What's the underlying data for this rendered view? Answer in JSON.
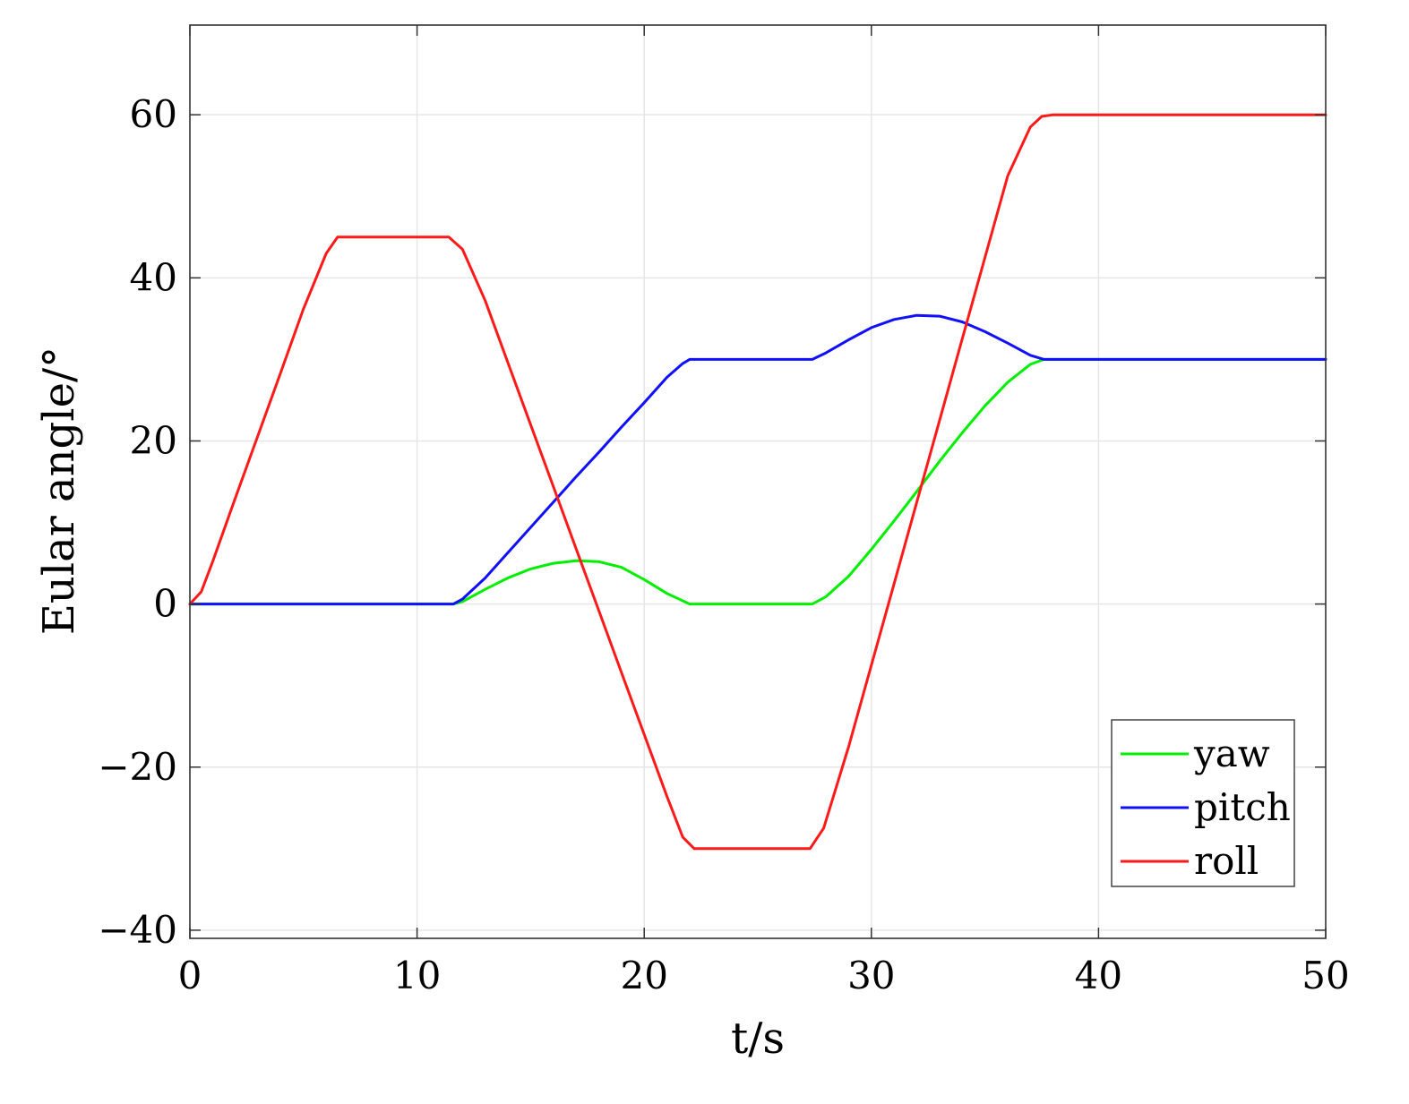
{
  "chart_data": {
    "type": "line",
    "title": "",
    "xlabel": "t/s",
    "ylabel": "Eular angle/°",
    "xlim": [
      0,
      50
    ],
    "ylim": [
      -41,
      71
    ],
    "xticks": [
      0,
      10,
      20,
      30,
      40,
      50
    ],
    "xtick_labels": [
      "0",
      "10",
      "20",
      "30",
      "40",
      "50"
    ],
    "yticks": [
      -40,
      -20,
      0,
      20,
      40,
      60
    ],
    "ytick_labels": [
      "−40",
      "−20",
      "0",
      "20",
      "40",
      "60"
    ],
    "grid": true,
    "legend_position": "bottom-right",
    "series": [
      {
        "name": "yaw",
        "color": "#00ee00",
        "x": [
          0,
          11.6,
          12,
          13,
          14,
          15,
          16,
          17,
          18,
          19,
          20,
          21,
          22,
          23,
          27.4,
          28,
          29,
          30,
          31,
          32,
          33,
          34,
          35,
          36,
          37,
          37.6,
          50
        ],
        "y": [
          0,
          0,
          0.3,
          1.8,
          3.2,
          4.3,
          5.0,
          5.3,
          5.2,
          4.5,
          3.0,
          1.3,
          0,
          0,
          0,
          0.9,
          3.4,
          6.7,
          10.2,
          13.8,
          17.5,
          21.0,
          24.3,
          27.2,
          29.4,
          30,
          30
        ]
      },
      {
        "name": "pitch",
        "color": "#1010ff",
        "x": [
          0,
          11.6,
          12,
          13,
          14,
          15,
          16,
          17,
          18,
          19,
          20,
          21,
          21.7,
          22,
          27.4,
          28,
          29,
          30,
          31,
          32,
          33,
          34,
          35,
          36,
          37,
          37.6,
          50
        ],
        "y": [
          0,
          0,
          0.6,
          3.2,
          6.3,
          9.4,
          12.5,
          15.6,
          18.6,
          21.7,
          24.7,
          27.8,
          29.5,
          30,
          30,
          30.8,
          32.4,
          33.9,
          34.9,
          35.4,
          35.3,
          34.6,
          33.4,
          32.0,
          30.5,
          30,
          30
        ]
      },
      {
        "name": "roll",
        "color": "#ff1a1a",
        "x": [
          0,
          0.5,
          1,
          2,
          3,
          4,
          5,
          6,
          6.5,
          11.4,
          12,
          13,
          14,
          15,
          16,
          17,
          18,
          19,
          20,
          21,
          21.7,
          22.2,
          27.3,
          27.9,
          29,
          30,
          31,
          32,
          33,
          34,
          35,
          36,
          37,
          37.5,
          38,
          50
        ],
        "y": [
          0,
          1.5,
          5.2,
          13.0,
          20.7,
          28.4,
          36.2,
          43.0,
          45,
          45,
          43.5,
          37.2,
          29.6,
          22.0,
          14.4,
          6.8,
          -0.8,
          -8.4,
          -16.0,
          -23.6,
          -28.6,
          -30,
          -30,
          -27.5,
          -17.5,
          -7.5,
          2.5,
          12.5,
          22.5,
          32.5,
          42.5,
          52.5,
          58.5,
          59.8,
          60,
          60
        ]
      }
    ]
  }
}
